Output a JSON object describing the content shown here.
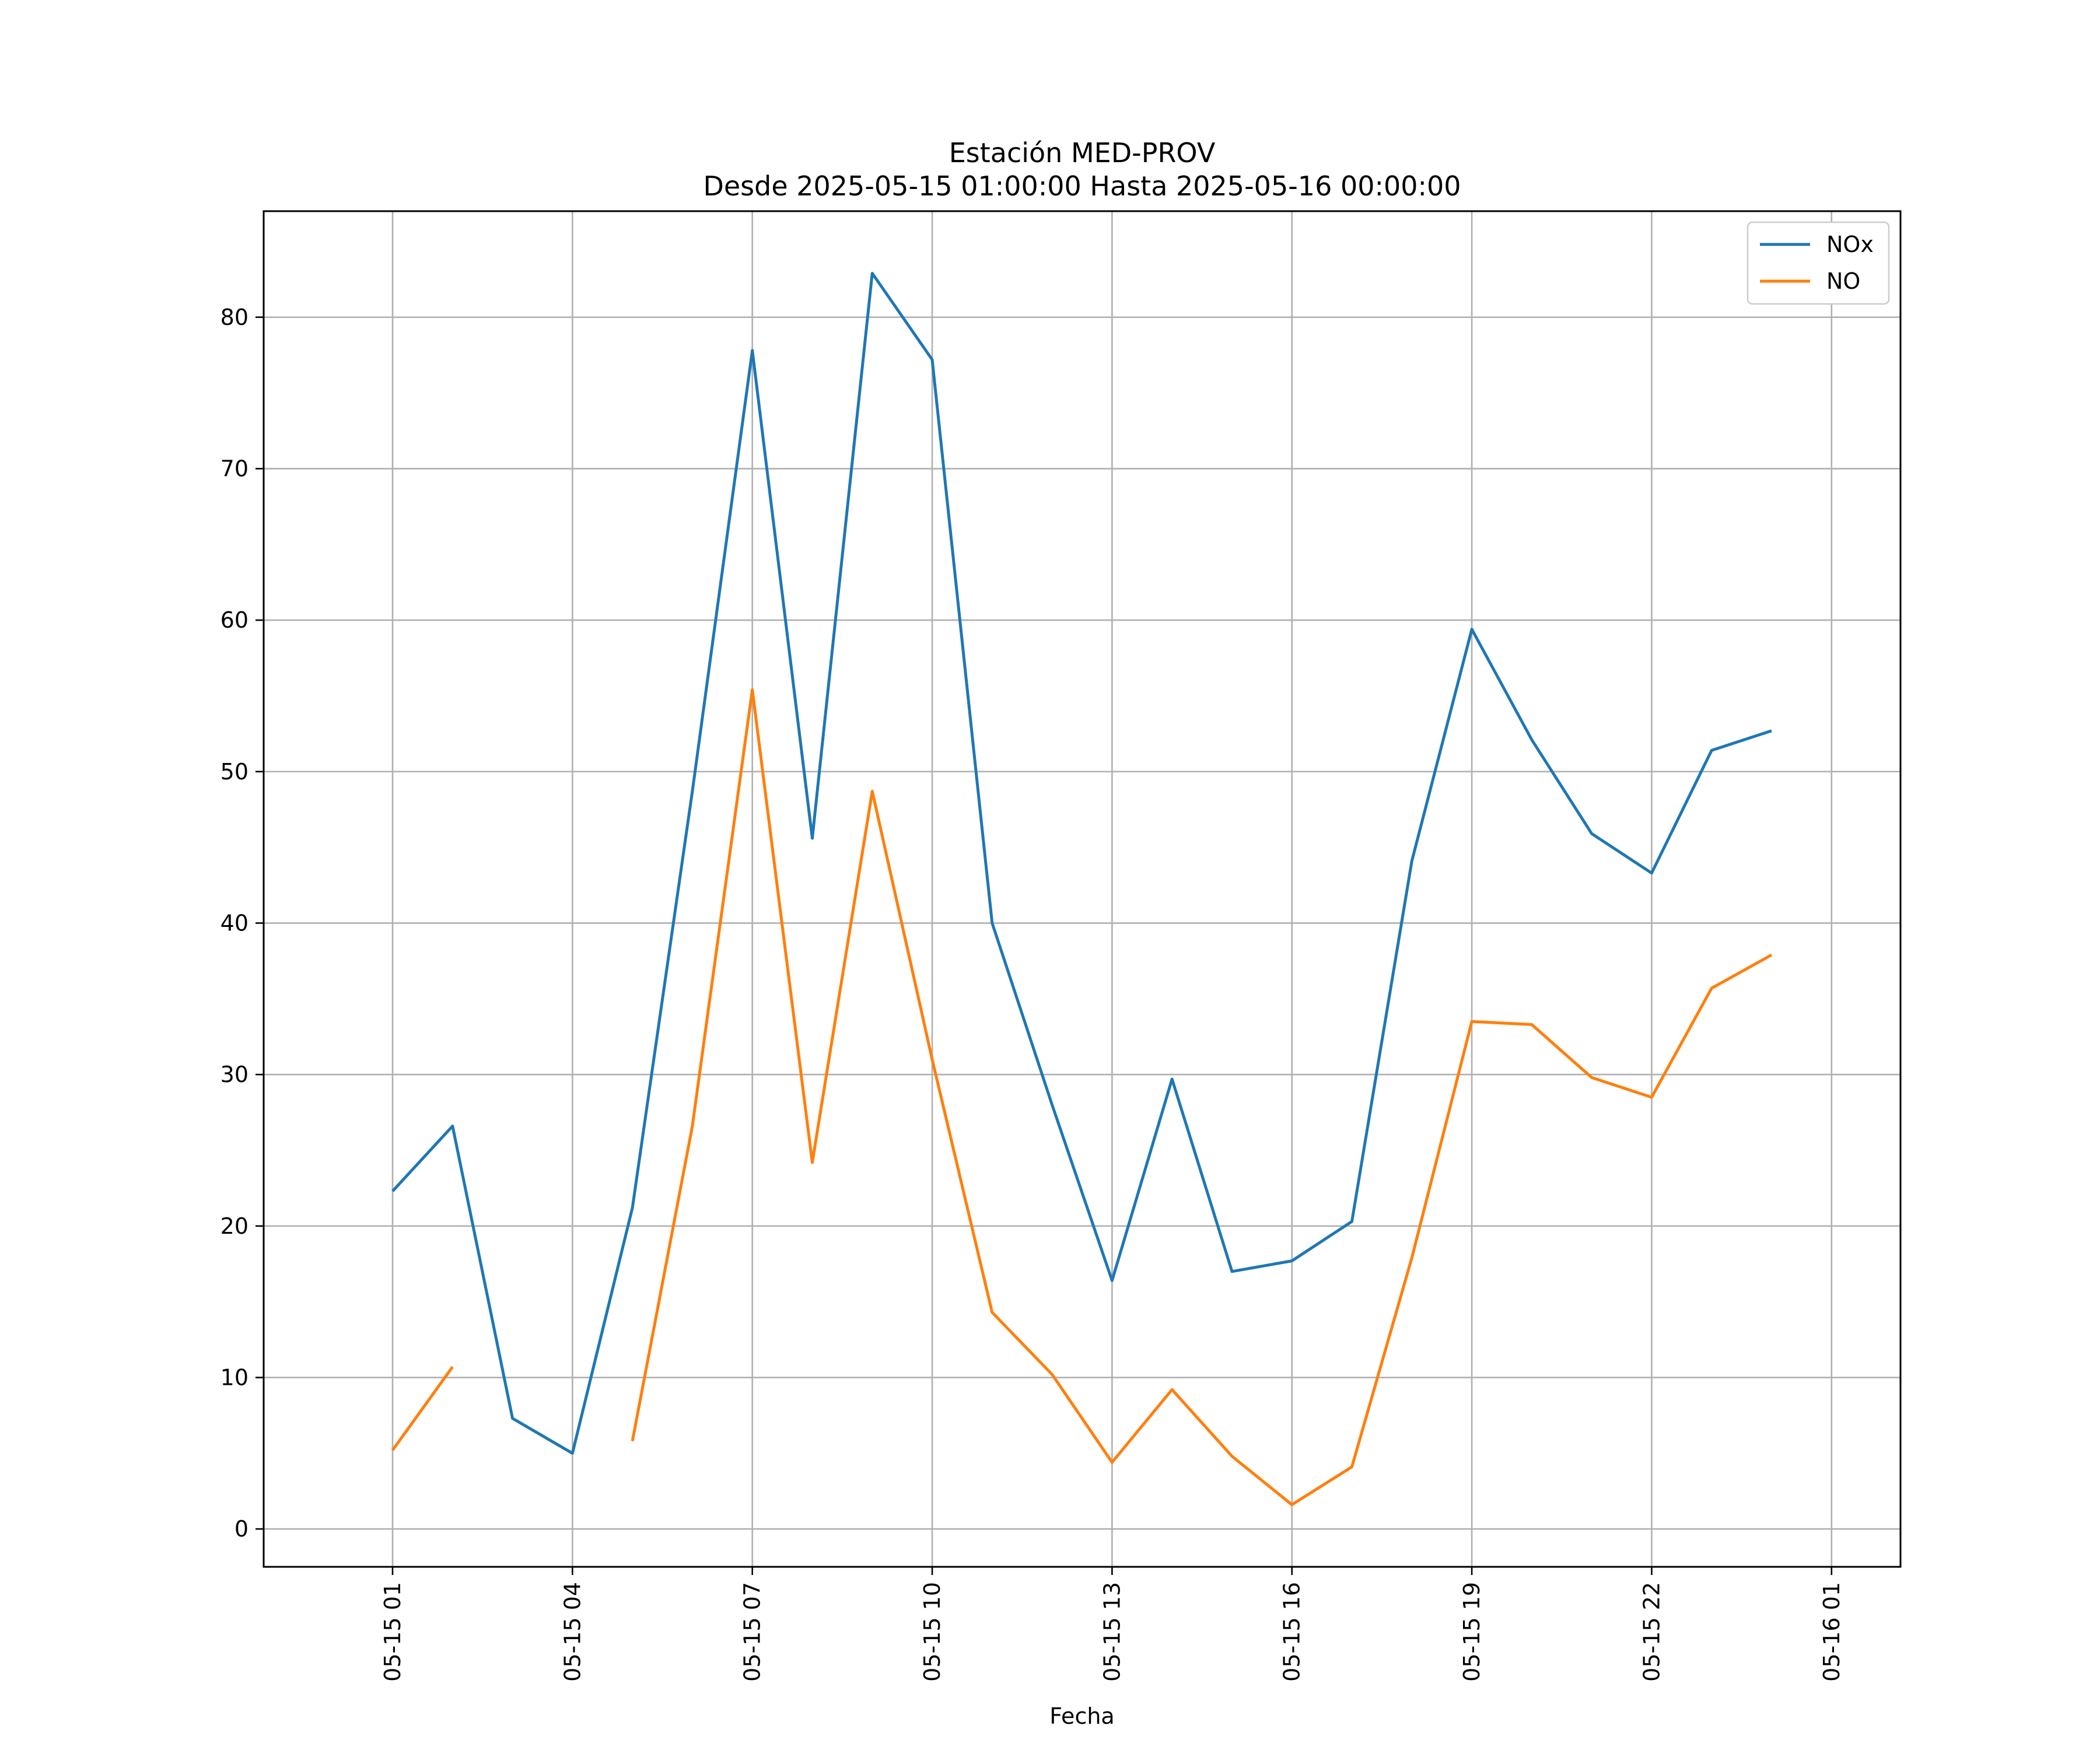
{
  "chart_data": {
    "type": "line",
    "title": "Estación MED-PROV",
    "subtitle": "Desde 2025-05-15 01:00:00 Hasta 2025-05-16 00:00:00",
    "xlabel": "Fecha",
    "ylabel": "",
    "x": [
      "2025-05-15 01:00",
      "2025-05-15 02:00",
      "2025-05-15 03:00",
      "2025-05-15 04:00",
      "2025-05-15 05:00",
      "2025-05-15 06:00",
      "2025-05-15 07:00",
      "2025-05-15 08:00",
      "2025-05-15 09:00",
      "2025-05-15 10:00",
      "2025-05-15 11:00",
      "2025-05-15 12:00",
      "2025-05-15 13:00",
      "2025-05-15 14:00",
      "2025-05-15 15:00",
      "2025-05-15 16:00",
      "2025-05-15 17:00",
      "2025-05-15 18:00",
      "2025-05-15 19:00",
      "2025-05-15 20:00",
      "2025-05-15 21:00",
      "2025-05-15 22:00",
      "2025-05-15 23:00",
      "2025-05-16 00:00"
    ],
    "series": [
      {
        "name": "NOx",
        "color": "#1f77b4",
        "values": [
          22.3,
          26.6,
          7.3,
          5.0,
          21.2,
          48.7,
          77.8,
          45.6,
          82.9,
          77.2,
          40.0,
          28.0,
          16.4,
          29.7,
          17.0,
          17.7,
          20.3,
          44.1,
          59.4,
          52.1,
          45.9,
          43.3,
          51.4,
          52.7
        ]
      },
      {
        "name": "NO",
        "color": "#ff7f0e",
        "values": [
          5.2,
          10.7,
          null,
          null,
          5.8,
          26.6,
          55.4,
          24.2,
          48.7,
          31.0,
          14.3,
          10.2,
          4.4,
          9.2,
          4.8,
          1.6,
          4.1,
          17.9,
          33.5,
          33.3,
          29.8,
          28.5,
          35.7,
          37.9
        ]
      }
    ],
    "xticks": [
      "05-15 01",
      "05-15 04",
      "05-15 07",
      "05-15 10",
      "05-15 13",
      "05-15 16",
      "05-15 19",
      "05-15 22",
      "05-16 01"
    ],
    "yticks": [
      "0",
      "10",
      "20",
      "30",
      "40",
      "50",
      "60",
      "70",
      "80"
    ],
    "xlim": [
      "2025-05-14 22:51",
      "2025-05-16 02:09"
    ],
    "ylim": [
      -2.5,
      87
    ],
    "grid": true,
    "legend_position": "top-right"
  }
}
